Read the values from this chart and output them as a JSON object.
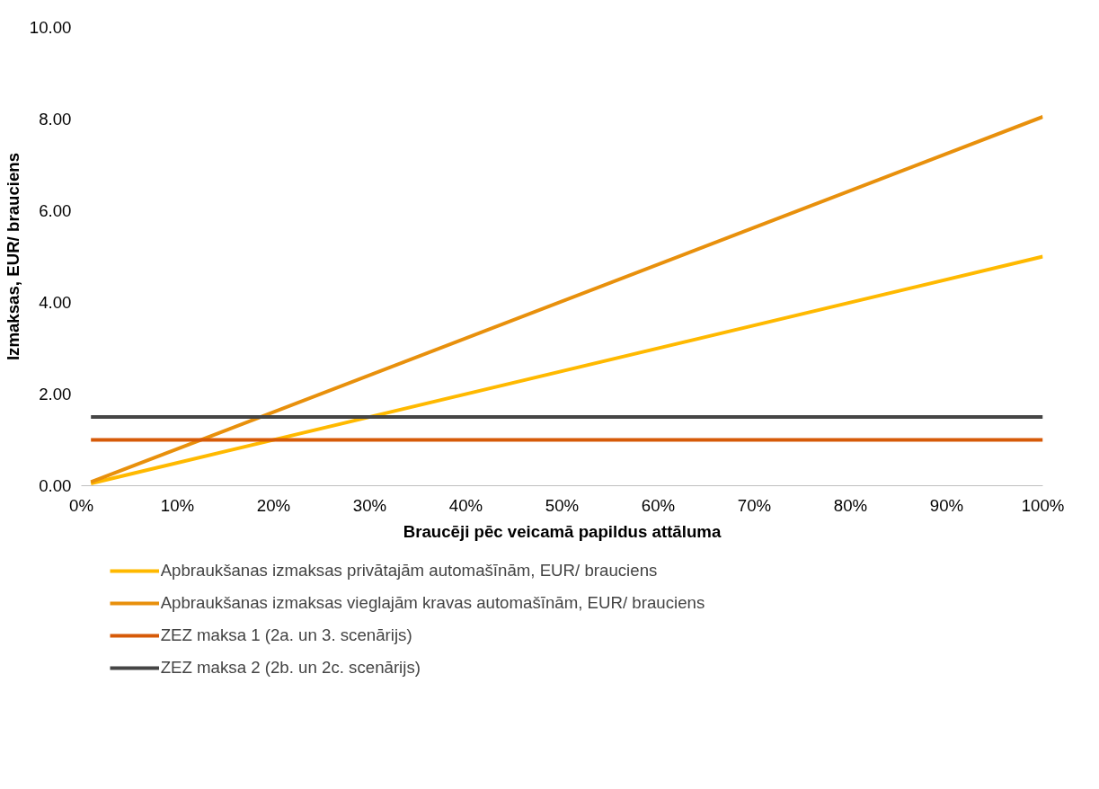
{
  "chart_data": {
    "type": "line",
    "xlabel": "Braucēji pēc veicamā papildus attāluma",
    "ylabel": "Izmaksas, EUR/ brauciens",
    "x": [
      1,
      100
    ],
    "series": [
      {
        "name": "Apbraukšanas izmaksas privātajām automašīnām, EUR/ brauciens",
        "color": "#ffb900",
        "values": [
          0.05,
          5.0
        ]
      },
      {
        "name": "Apbraukšanas izmaksas vieglajām kravas automašīnām, EUR/ brauciens",
        "color": "#e8900c",
        "values": [
          0.08,
          8.05
        ]
      },
      {
        "name": "ZEZ maksa 1 (2a. un 3. scenārijs)",
        "color": "#d65a08",
        "values": [
          1.0,
          1.0
        ]
      },
      {
        "name": "ZEZ maksa 2 (2b. un 2c. scenārijs)",
        "color": "#454545",
        "values": [
          1.5,
          1.5
        ]
      }
    ],
    "xlim": [
      0,
      100
    ],
    "xticks": [
      {
        "value": 0,
        "label": "0%"
      },
      {
        "value": 10,
        "label": "10%"
      },
      {
        "value": 20,
        "label": "20%"
      },
      {
        "value": 30,
        "label": "30%"
      },
      {
        "value": 40,
        "label": "40%"
      },
      {
        "value": 50,
        "label": "50%"
      },
      {
        "value": 60,
        "label": "60%"
      },
      {
        "value": 70,
        "label": "70%"
      },
      {
        "value": 80,
        "label": "80%"
      },
      {
        "value": 90,
        "label": "90%"
      },
      {
        "value": 100,
        "label": "100%"
      }
    ],
    "ylim": [
      0,
      10
    ],
    "yticks": [
      {
        "value": 0,
        "label": "0.00"
      },
      {
        "value": 2,
        "label": "2.00"
      },
      {
        "value": 4,
        "label": "4.00"
      },
      {
        "value": 6,
        "label": "6.00"
      },
      {
        "value": 8,
        "label": "8.00"
      },
      {
        "value": 10,
        "label": "10.00"
      }
    ],
    "grid": false,
    "legend": "bottom",
    "marker": "none",
    "line_style": "solid"
  }
}
